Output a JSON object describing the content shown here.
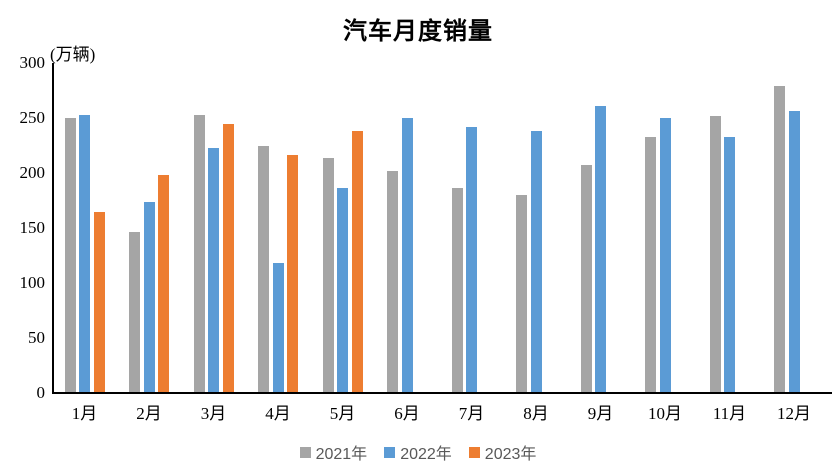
{
  "chart_data": {
    "type": "bar",
    "title": "汽车月度销量",
    "ylabel": "(万辆)",
    "xlabel": "",
    "categories": [
      "1月",
      "2月",
      "3月",
      "4月",
      "5月",
      "6月",
      "7月",
      "8月",
      "9月",
      "10月",
      "11月",
      "12月"
    ],
    "series": [
      {
        "name": "2021年",
        "color": "#A5A5A5",
        "values": [
          250,
          146,
          253,
          225,
          214,
          202,
          186,
          180,
          207,
          233,
          252,
          279
        ]
      },
      {
        "name": "2022年",
        "color": "#5B9BD5",
        "values": [
          253,
          174,
          223,
          118,
          186,
          250,
          242,
          238,
          261,
          250,
          233,
          256
        ]
      },
      {
        "name": "2023年",
        "color": "#ED7D31",
        "values": [
          165,
          198,
          245,
          216,
          238,
          null,
          null,
          null,
          null,
          null,
          null,
          null
        ]
      }
    ],
    "ylim": [
      0,
      300
    ],
    "yticks": [
      0,
      50,
      100,
      150,
      200,
      250,
      300
    ],
    "grid": false,
    "legend_position": "bottom",
    "axis_color": "#000000",
    "tick_label_color": "#000000",
    "legend_text_color": "#595959",
    "background_color": "#ffffff"
  }
}
